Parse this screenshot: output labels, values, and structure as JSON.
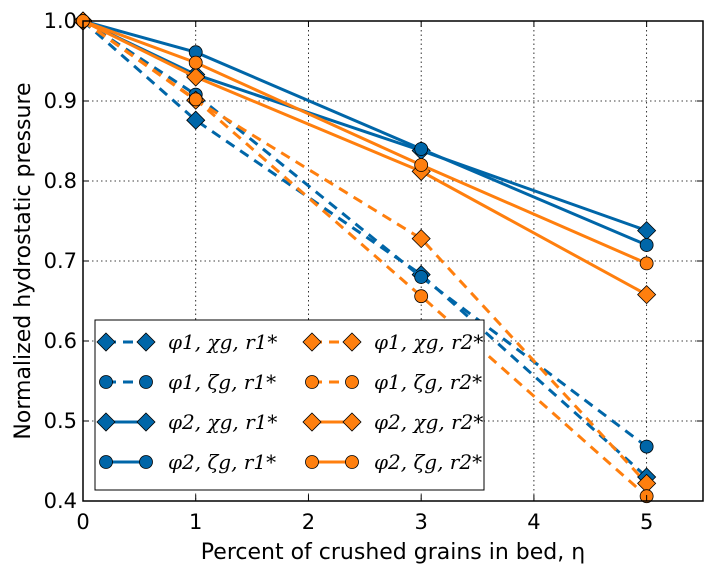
{
  "chart_data": {
    "type": "line",
    "xlabel": "Percent of crushed grains in bed, η",
    "ylabel": "Normalized hydrostatic pressure",
    "xlim": [
      0,
      5.5
    ],
    "ylim": [
      0.4,
      1.0
    ],
    "xticks": [
      "0",
      "1",
      "2",
      "3",
      "4",
      "5"
    ],
    "yticks": [
      "0.4",
      "0.5",
      "0.6",
      "0.7",
      "0.8",
      "0.9",
      "1.0"
    ],
    "grid": true,
    "legend_placement": "lower-left",
    "colors": {
      "blue": "#0066a8",
      "orange": "#ff7f0e"
    },
    "x": [
      0,
      1,
      3,
      5
    ],
    "series": [
      {
        "name": "φ1, χg, r1*",
        "color": "#0066a8",
        "linestyle": "dashed",
        "marker": "diamond",
        "values": [
          1.0,
          0.876,
          0.683,
          0.43
        ]
      },
      {
        "name": "φ1, ζg, r1*",
        "color": "#0066a8",
        "linestyle": "dashed",
        "marker": "circle",
        "values": [
          1.0,
          0.908,
          0.68,
          0.468
        ]
      },
      {
        "name": "φ2, χg, r1*",
        "color": "#0066a8",
        "linestyle": "solid",
        "marker": "diamond",
        "values": [
          1.0,
          0.933,
          0.838,
          0.738
        ]
      },
      {
        "name": "φ2, ζg, r1*",
        "color": "#0066a8",
        "linestyle": "solid",
        "marker": "circle",
        "values": [
          1.0,
          0.961,
          0.84,
          0.72
        ]
      },
      {
        "name": "φ1, χg, r2*",
        "color": "#ff7f0e",
        "linestyle": "dashed",
        "marker": "diamond",
        "values": [
          1.0,
          0.901,
          0.728,
          0.422
        ]
      },
      {
        "name": "φ1, ζg, r2*",
        "color": "#ff7f0e",
        "linestyle": "dashed",
        "marker": "circle",
        "values": [
          1.0,
          0.902,
          0.656,
          0.406
        ]
      },
      {
        "name": "φ2, χg, r2*",
        "color": "#ff7f0e",
        "linestyle": "solid",
        "marker": "diamond",
        "values": [
          1.0,
          0.93,
          0.812,
          0.658
        ]
      },
      {
        "name": "φ2, ζg, r2*",
        "color": "#ff7f0e",
        "linestyle": "solid",
        "marker": "circle",
        "values": [
          1.0,
          0.948,
          0.82,
          0.697
        ]
      }
    ]
  }
}
